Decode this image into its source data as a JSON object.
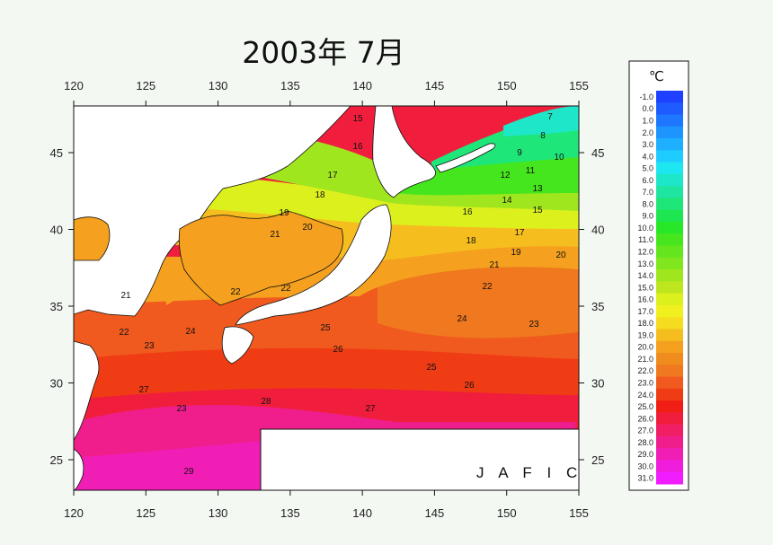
{
  "title": "2003年 7月",
  "lon_ticks": [
    "120",
    "125",
    "130",
    "135",
    "140",
    "145",
    "150",
    "155"
  ],
  "lat_ticks": [
    "45",
    "40",
    "35",
    "30",
    "25"
  ],
  "colorbar": {
    "unit": "℃",
    "labels": [
      "-1.0",
      "0.0",
      "1.0",
      "2.0",
      "3.0",
      "4.0",
      "5.0",
      "6.0",
      "7.0",
      "8.0",
      "9.0",
      "10.0",
      "11.0",
      "12.0",
      "13.0",
      "14.0",
      "15.0",
      "16.0",
      "17.0",
      "18.0",
      "19.0",
      "20.0",
      "21.0",
      "22.0",
      "23.0",
      "24.0",
      "25.0",
      "26.0",
      "27.0",
      "28.0",
      "29.0",
      "30.0",
      "31.0"
    ],
    "colors": [
      "#1e40ff",
      "#1e5cff",
      "#1e78ff",
      "#1e94ff",
      "#1eb0ff",
      "#1eccff",
      "#1ee6f0",
      "#1ee6c8",
      "#1ee6a0",
      "#1ee678",
      "#1ee650",
      "#28e628",
      "#46e61e",
      "#64e61e",
      "#82e61e",
      "#a0e61e",
      "#bee61e",
      "#dcf01e",
      "#f0f01e",
      "#f5dc1e",
      "#f5be1e",
      "#f5a01e",
      "#f08c1e",
      "#f0781e",
      "#f05a1e",
      "#f03c14",
      "#f01e14",
      "#f01e3c",
      "#f01e64",
      "#f01e8c",
      "#f01eb4",
      "#f01edc",
      "#f01eff"
    ]
  },
  "contour_labels": [
    "15",
    "16",
    "17",
    "18",
    "19",
    "20",
    "21",
    "21",
    "22",
    "22",
    "22",
    "23",
    "24",
    "25",
    "26",
    "27",
    "28",
    "29",
    "7",
    "8",
    "9",
    "10",
    "11",
    "12",
    "13",
    "14",
    "15",
    "16",
    "17",
    "18",
    "19",
    "20",
    "21",
    "22",
    "23",
    "23",
    "24",
    "25",
    "26",
    "27"
  ],
  "watermark": "J A F I C"
}
